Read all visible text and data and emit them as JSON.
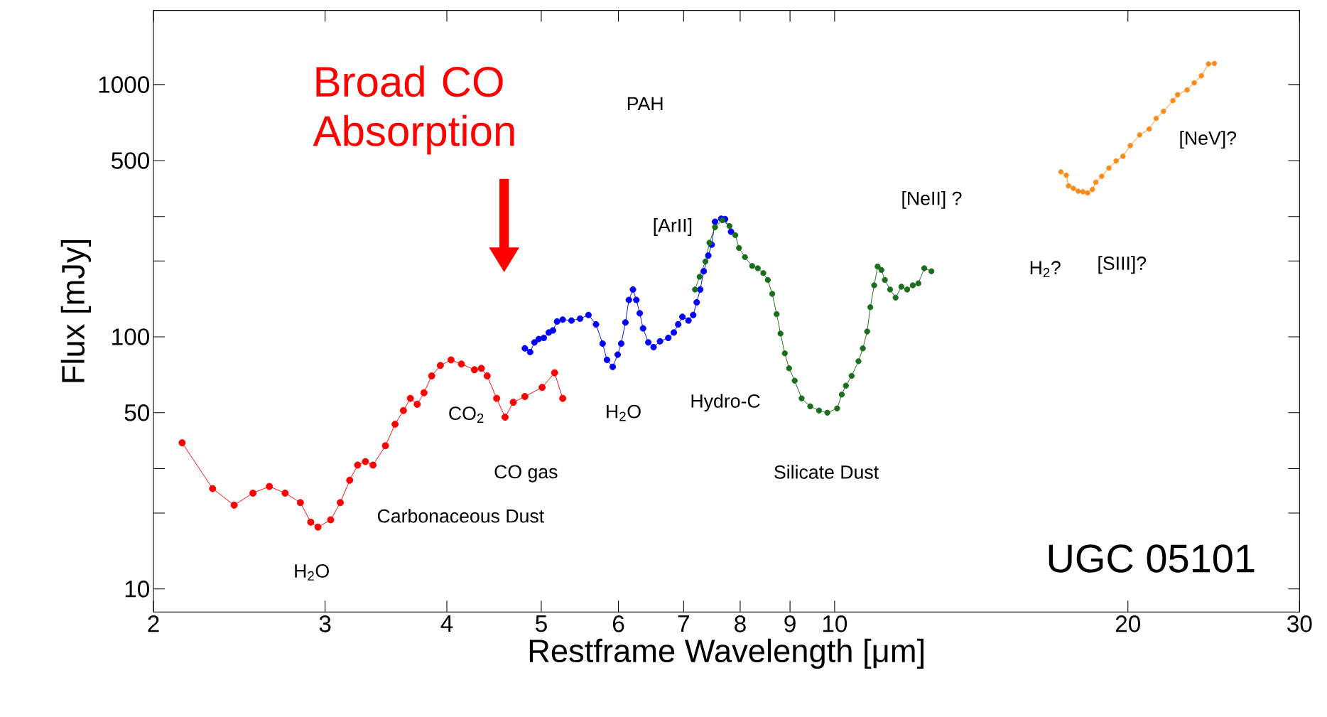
{
  "chart_data": {
    "type": "line",
    "title": "UGC 05101",
    "xlabel": "Restframe Wavelength [μm]",
    "ylabel": "Flux [mJy]",
    "log": "xy",
    "xlim": [
      2,
      30
    ],
    "ylim": [
      8.1,
      1970
    ],
    "xticks": [
      2,
      3,
      4,
      5,
      6,
      7,
      8,
      9,
      10,
      20,
      30
    ],
    "yticks": [
      10,
      {
        "value": 20,
        "label": null
      },
      {
        "value": 30,
        "label": null
      },
      50,
      100,
      {
        "value": 200,
        "label": null
      },
      {
        "value": 300,
        "label": null
      },
      500,
      1000
    ],
    "marker": "circle",
    "line_style": "solid",
    "grid": false,
    "series": [
      {
        "color": "#ff0000",
        "x": [
          2.14,
          2.3,
          2.42,
          2.53,
          2.63,
          2.73,
          2.83,
          2.9,
          2.95,
          3.04,
          3.11,
          3.18,
          3.24,
          3.3,
          3.36,
          3.46,
          3.54,
          3.61,
          3.67,
          3.73,
          3.79,
          3.86,
          3.94,
          4.04,
          4.14,
          4.27,
          4.34,
          4.4,
          4.5,
          4.59,
          4.68,
          4.81,
          5.01,
          5.16,
          5.26
        ],
        "values": [
          38,
          25,
          21.5,
          24,
          25.5,
          24,
          22,
          18.4,
          17.6,
          18.8,
          22,
          27,
          31,
          32,
          31,
          37,
          45,
          51,
          57,
          54,
          60,
          70,
          77,
          81,
          78,
          74,
          75,
          70,
          57,
          48,
          55,
          58,
          63,
          72,
          57
        ]
      },
      {
        "color": "#0000ff",
        "x": [
          4.81,
          4.87,
          4.92,
          4.97,
          5.03,
          5.09,
          5.14,
          5.19,
          5.26,
          5.37,
          5.48,
          5.59,
          5.69,
          5.78,
          5.84,
          5.92,
          5.99,
          6.04,
          6.1,
          6.15,
          6.21,
          6.26,
          6.31,
          6.36,
          6.44,
          6.52,
          6.62,
          6.75,
          6.84,
          6.91,
          6.98,
          7.08,
          7.16,
          7.22,
          7.28,
          7.34,
          7.42,
          7.48,
          7.54,
          7.65,
          7.72,
          7.83
        ],
        "values": [
          90,
          87,
          95,
          98,
          99,
          104,
          106,
          115,
          117,
          116,
          118,
          122,
          112,
          94,
          81,
          76,
          85,
          94,
          114,
          140,
          154,
          140,
          124,
          108,
          95,
          91,
          96,
          99,
          104,
          112,
          120,
          116,
          122,
          137,
          154,
          182,
          210,
          232,
          286,
          294,
          293,
          261
        ]
      },
      {
        "color": "#1b6e1b",
        "x": [
          7.19,
          7.27,
          7.37,
          7.44,
          7.54,
          7.67,
          7.8,
          7.91,
          7.98,
          8.09,
          8.23,
          8.34,
          8.45,
          8.54,
          8.63,
          8.72,
          8.8,
          8.89,
          8.98,
          9.1,
          9.25,
          9.44,
          9.64,
          9.83,
          10.06,
          10.17,
          10.27,
          10.41,
          10.58,
          10.69,
          10.8,
          10.88,
          10.98,
          11.07,
          11.17,
          11.26,
          11.4,
          11.55,
          11.71,
          11.87,
          12.03,
          12.19,
          12.36,
          12.57
        ],
        "values": [
          154,
          173,
          199,
          236,
          272,
          290,
          275,
          253,
          225,
          207,
          191,
          187,
          179,
          168,
          148,
          123,
          103,
          86,
          75,
          67,
          57,
          53,
          51,
          50,
          52,
          59,
          64,
          70,
          80,
          90,
          105,
          131,
          160,
          190,
          184,
          168,
          154,
          143,
          158,
          154,
          160,
          163,
          187,
          182
        ]
      },
      {
        "color": "#ff8c1a",
        "x": [
          17.07,
          17.29,
          17.38,
          17.58,
          17.78,
          17.98,
          18.18,
          18.39,
          18.54,
          18.8,
          19.12,
          19.45,
          19.77,
          20.11,
          20.56,
          21.03,
          21.38,
          21.75,
          22.24,
          22.49,
          23.0,
          23.39,
          23.79,
          24.19,
          24.53
        ],
        "values": [
          451,
          437,
          397,
          388,
          378,
          376,
          372,
          384,
          410,
          433,
          467,
          498,
          520,
          573,
          632,
          667,
          735,
          784,
          864,
          912,
          953,
          1016,
          1084,
          1208,
          1213
        ]
      }
    ],
    "annotations": [
      "Broad CO Absorption",
      "PAH",
      "[ArII]",
      "[NeII] ?",
      "[NeV]?",
      "H$_{2}$?",
      "[SIII]?",
      "Hydro-C",
      "H$_{2}$O",
      "CO$_{2}$",
      "CO gas",
      "Silicate Dust",
      "Carbonaceous Dust",
      "H$_{2}$O"
    ]
  }
}
